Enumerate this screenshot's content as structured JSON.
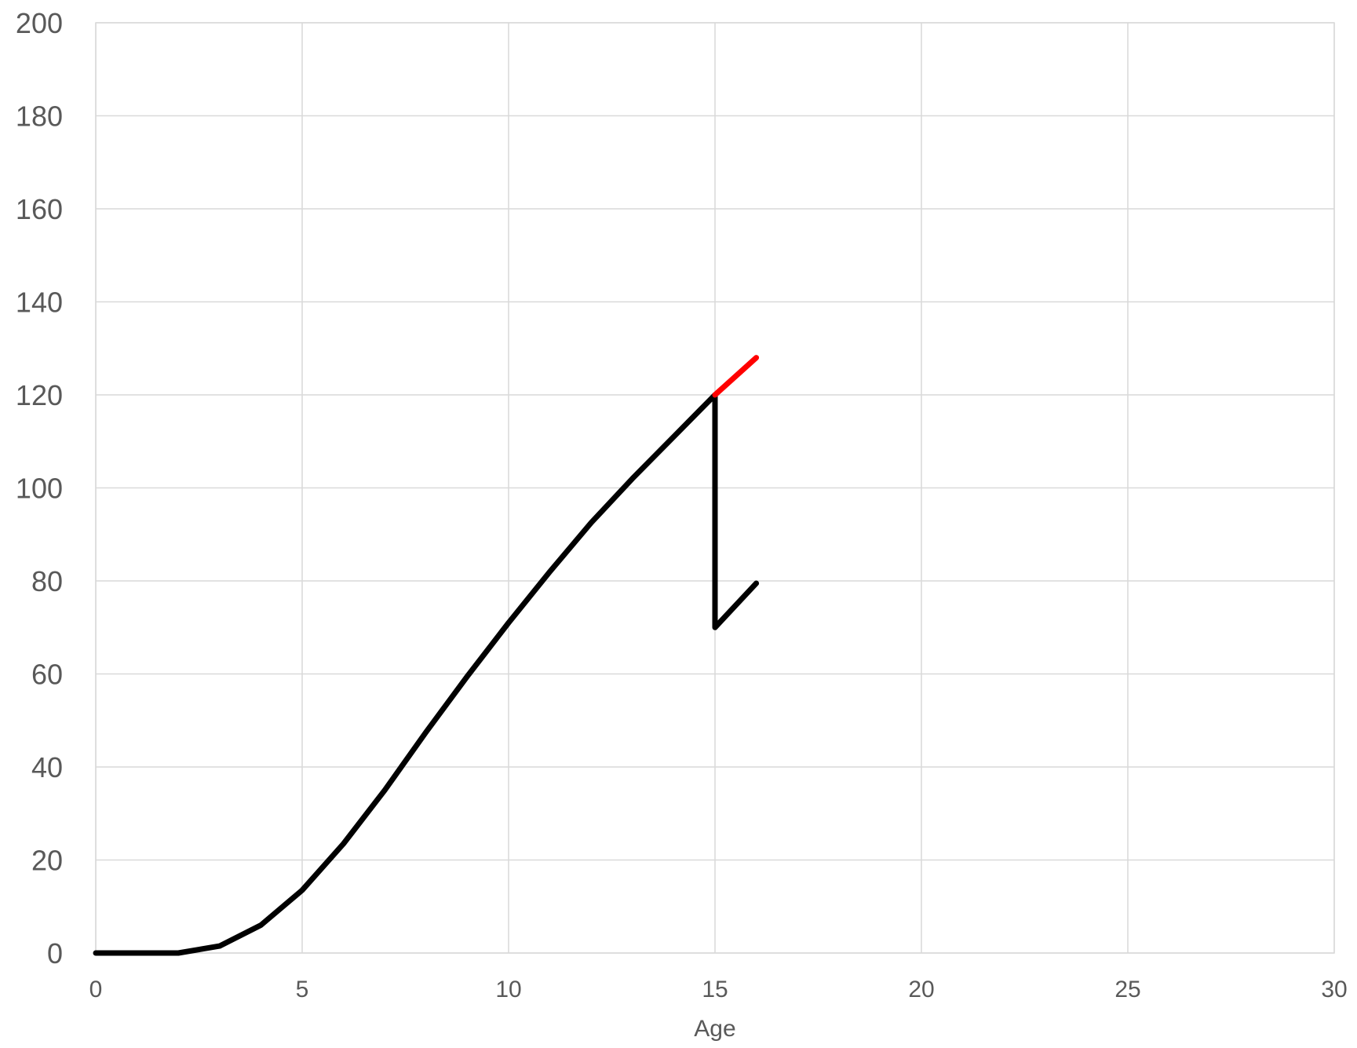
{
  "chart_data": {
    "type": "line",
    "title": "",
    "xlabel": "Age",
    "ylabel": "",
    "xlim": [
      0,
      30
    ],
    "ylim": [
      0,
      200
    ],
    "x_ticks": [
      0,
      5,
      10,
      15,
      20,
      25,
      30
    ],
    "y_ticks": [
      0,
      20,
      40,
      60,
      80,
      100,
      120,
      140,
      160,
      180,
      200
    ],
    "grid": true,
    "legend": "none",
    "series": [
      {
        "color": "#000000",
        "points": [
          [
            0,
            0
          ],
          [
            1,
            0
          ],
          [
            2,
            0
          ],
          [
            3,
            1.5
          ],
          [
            4,
            6
          ],
          [
            5,
            13.5
          ],
          [
            6,
            23.5
          ],
          [
            7,
            35
          ],
          [
            8,
            47.5
          ],
          [
            9,
            59.5
          ],
          [
            10,
            71
          ],
          [
            11,
            82
          ],
          [
            12,
            92.5
          ],
          [
            13,
            102
          ],
          [
            14,
            111
          ],
          [
            15,
            120
          ],
          [
            15,
            70
          ],
          [
            16,
            79.5
          ]
        ]
      },
      {
        "color": "#ff0000",
        "points": [
          [
            15,
            120
          ],
          [
            16,
            128
          ]
        ]
      }
    ]
  }
}
